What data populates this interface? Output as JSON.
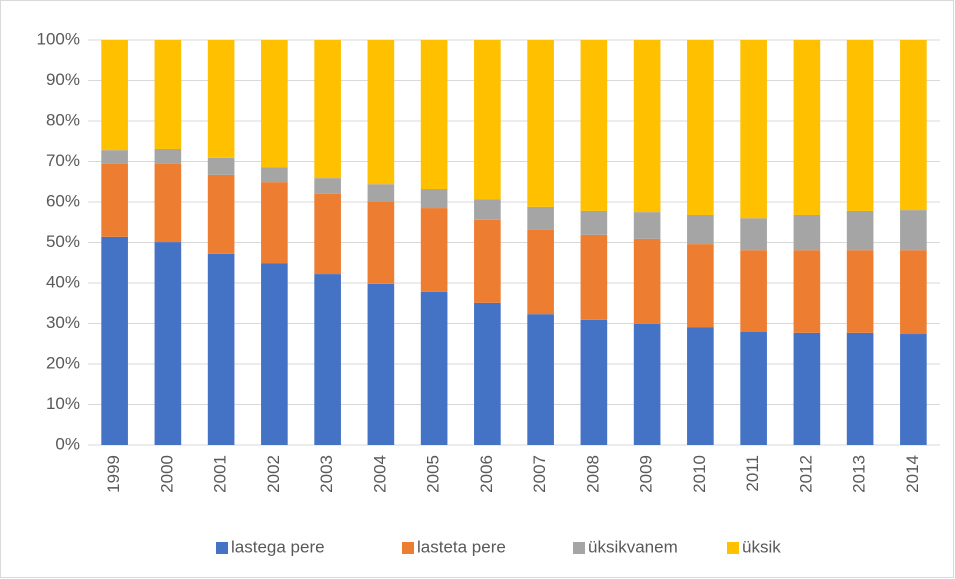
{
  "chart_data": {
    "type": "stacked_bar",
    "categories": [
      "1999",
      "2000",
      "2001",
      "2002",
      "2003",
      "2004",
      "2005",
      "2006",
      "2007",
      "2008",
      "2009",
      "2010",
      "2011",
      "2012",
      "2013",
      "2014"
    ],
    "series": [
      {
        "name": "lastega pere",
        "color": "#4472c4",
        "values": [
          51.4,
          50.1,
          47.2,
          44.9,
          42.2,
          39.8,
          37.8,
          35.1,
          32.3,
          30.9,
          29.9,
          29.1,
          27.9,
          27.7,
          27.7,
          27.4
        ]
      },
      {
        "name": "lasteta pere",
        "color": "#ed7d31",
        "values": [
          18.0,
          19.3,
          19.5,
          20.0,
          19.8,
          20.4,
          20.7,
          20.5,
          20.8,
          21.0,
          21.0,
          20.5,
          20.2,
          20.4,
          20.4,
          20.7
        ]
      },
      {
        "name": "üksikvanem",
        "color": "#a5a5a5",
        "values": [
          3.4,
          3.7,
          4.2,
          3.7,
          3.9,
          4.2,
          4.7,
          5.1,
          5.7,
          5.9,
          6.6,
          7.2,
          7.9,
          8.7,
          9.7,
          9.9
        ]
      },
      {
        "name": "üksik",
        "color": "#ffc000",
        "values": [
          27.2,
          26.9,
          29.1,
          31.4,
          34.1,
          35.6,
          36.8,
          39.3,
          41.2,
          42.2,
          42.5,
          43.2,
          44.0,
          43.2,
          42.2,
          42.0
        ]
      }
    ],
    "ylim": [
      0,
      100
    ],
    "yticks": [
      {
        "value": 0,
        "label": "0%"
      },
      {
        "value": 10,
        "label": "10%"
      },
      {
        "value": 20,
        "label": "20%"
      },
      {
        "value": 30,
        "label": "30%"
      },
      {
        "value": 40,
        "label": "40%"
      },
      {
        "value": 50,
        "label": "50%"
      },
      {
        "value": 60,
        "label": "60%"
      },
      {
        "value": 70,
        "label": "70%"
      },
      {
        "value": 80,
        "label": "80%"
      },
      {
        "value": 90,
        "label": "90%"
      },
      {
        "value": 100,
        "label": "100%"
      }
    ],
    "grid": true,
    "legend": "bottom"
  }
}
